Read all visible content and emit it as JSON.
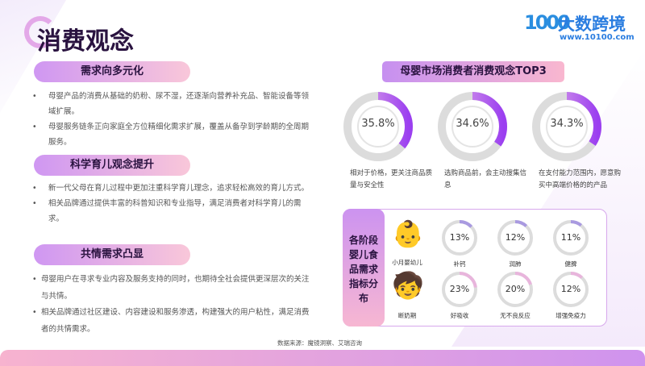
{
  "header": {
    "title": "消费观念"
  },
  "logo": {
    "mark": "1000",
    "name": "大数跨境",
    "url": "www.10100.com"
  },
  "sections": [
    {
      "heading": "需求向多元化",
      "bullets": [
        "母婴产品的消费从基础的奶粉、尿不湿，还逐渐向营养补充品、智能设备等领域扩展。",
        "母婴服务链条正向家庭全方位精细化需求扩展，覆盖从备孕到学龄期的全周期服务。"
      ]
    },
    {
      "heading": "科学育儿观念提升",
      "bullets": [
        "新一代父母在育儿过程中更加注重科学育儿理念，追求轻松高效的育儿方式。",
        "相关品牌通过提供丰富的科普知识和专业指导，满足消费者对科学育儿的需求。"
      ]
    },
    {
      "heading": "共情需求凸显",
      "bullets": [
        "母婴用户在寻求专业内容及服务支持的同时，也期待全社会提供更深层次的关注与共情。",
        "相关品牌通过社区建设、内容建设和服务渗透，构建强大的用户粘性，满足消费者的共情需求。"
      ]
    }
  ],
  "top3": {
    "title": "母婴市场消费者消费观念TOP3",
    "items": [
      {
        "value": 35.8,
        "label": "35.8%",
        "desc": "相对于价格，更关注商品质量与安全性"
      },
      {
        "value": 34.6,
        "label": "34.6%",
        "desc": "选购商品前，会主动搜集信息"
      },
      {
        "value": 34.3,
        "label": "34.3%",
        "desc": "在支付能力范围内，愿意购买中高端价格的的产品"
      }
    ]
  },
  "panel": {
    "title": "各阶段婴儿食品需求指标分布",
    "rows": [
      {
        "stage": "小月婴幼儿",
        "color": "#a99ae0",
        "items": [
          {
            "value": 13,
            "label": "13%",
            "name": "补钙"
          },
          {
            "value": 12,
            "label": "12%",
            "name": "润肺"
          },
          {
            "value": 11,
            "label": "11%",
            "name": "健脾"
          }
        ]
      },
      {
        "stage": "断奶期",
        "color": "#e8b5dc",
        "items": [
          {
            "value": 23,
            "label": "23%",
            "name": "好吸收"
          },
          {
            "value": 20,
            "label": "20%",
            "name": "无不良反应"
          },
          {
            "value": 12,
            "label": "12%",
            "name": "增强免疫力"
          }
        ]
      }
    ]
  },
  "source": "数据来源：魔镜洞察、艾瑞咨询",
  "colors": {
    "accent": "#9b3ff0",
    "track": "#dcdcdc"
  }
}
